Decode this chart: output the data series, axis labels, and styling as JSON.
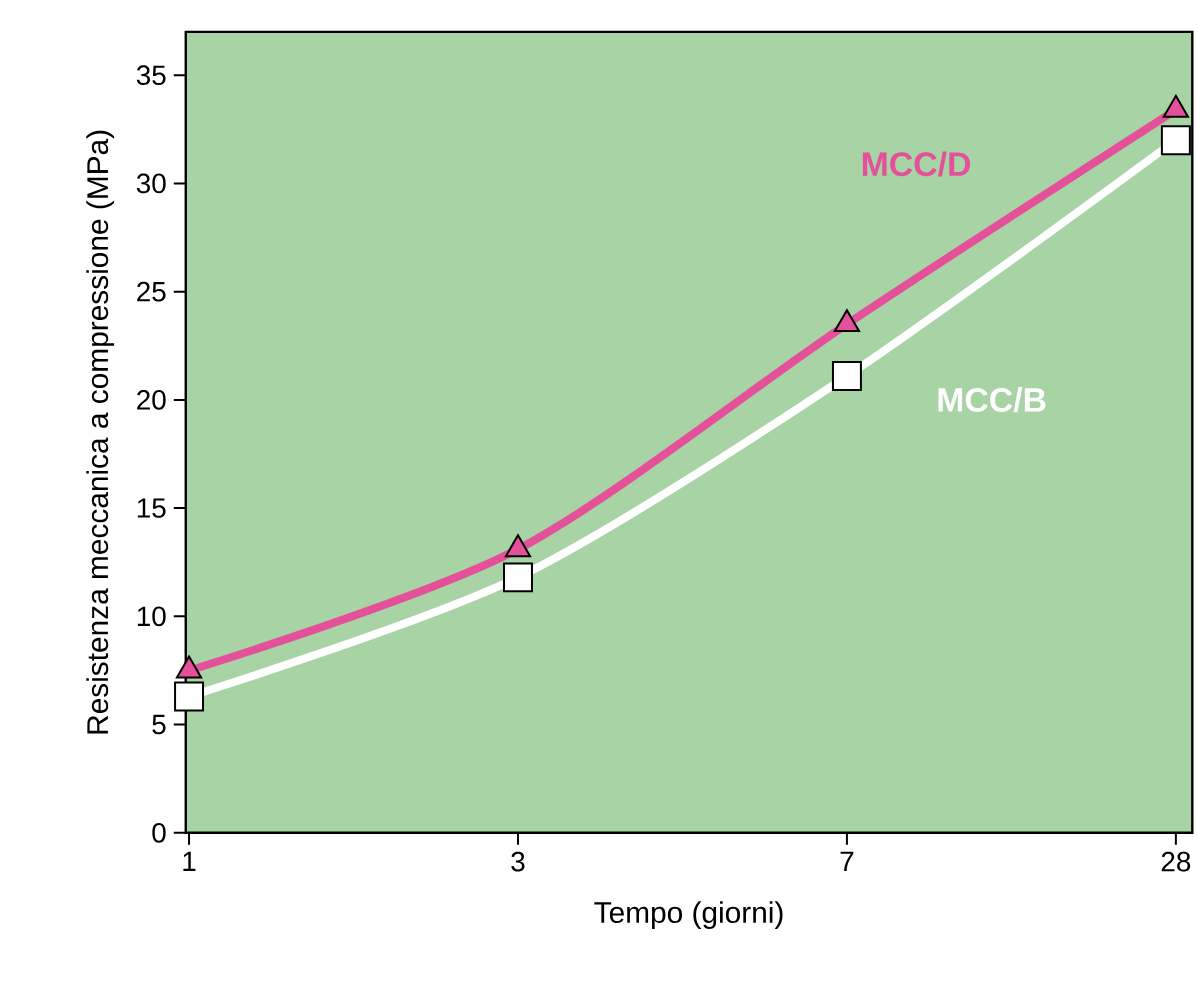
{
  "chart_data": {
    "type": "line",
    "xlabel": "Tempo (giorni)",
    "ylabel": "Resistenza meccanica a compressione (MPa)",
    "categories": [
      "1",
      "3",
      "7",
      "28"
    ],
    "series": [
      {
        "name": "MCC/D",
        "color": "#e4509a",
        "marker": "triangle",
        "values": [
          7.5,
          13.1,
          23.5,
          33.4
        ]
      },
      {
        "name": "MCC/B",
        "color": "#ffffff",
        "marker": "square",
        "values": [
          6.3,
          11.8,
          21.1,
          32.0
        ]
      }
    ],
    "ylim": [
      0,
      37
    ],
    "yticks": [
      0,
      5,
      10,
      15,
      20,
      25,
      30,
      35
    ],
    "grid": false,
    "legend": false
  }
}
